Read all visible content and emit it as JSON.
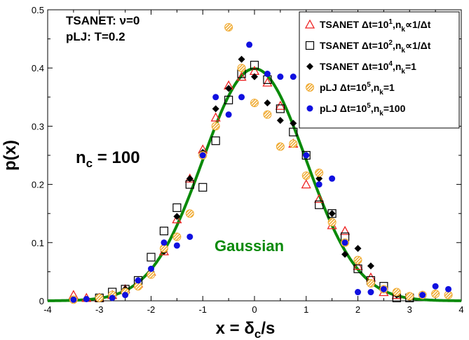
{
  "chart_data": {
    "type": "scatter",
    "xlim": [
      -4,
      4
    ],
    "ylim": [
      0,
      0.5
    ],
    "xticks": [
      "-4",
      "-3",
      "-2",
      "-1",
      "0",
      "1",
      "2",
      "3",
      "4"
    ],
    "yticks": [
      "0",
      "0.1",
      "0.2",
      "0.3",
      "0.4",
      "0.5"
    ],
    "xlabel": {
      "prefix": "x = δ",
      "sub": "c",
      "suffix": "/s"
    },
    "ylabel": "p(x)",
    "annotations": {
      "line1": "TSANET: ν=0",
      "line2": "pLJ: T=0.2",
      "nc_main": "n",
      "nc_sub": "c",
      "nc_rest": " = 100",
      "curve_label": "Gaussian"
    },
    "legend_position": "top-right",
    "colors": {
      "tri": "#ee2222",
      "square": "#000000",
      "diamond": "#000000",
      "hatched": "#f0aa30",
      "blue": "#1010e0",
      "gaussian": "#0a8a0a"
    },
    "legend": [
      {
        "marker": "triangle-open",
        "parts": [
          {
            "t": "TSANET  Δt=10"
          },
          {
            "t": "1",
            "sup": true
          },
          {
            "t": ",n"
          },
          {
            "t": "k",
            "sub": true
          },
          {
            "t": "∝1/Δt"
          }
        ]
      },
      {
        "marker": "square-open",
        "parts": [
          {
            "t": "TSANET  Δt=10"
          },
          {
            "t": "2",
            "sup": true
          },
          {
            "t": ",n"
          },
          {
            "t": "k",
            "sub": true
          },
          {
            "t": "∝1/Δt"
          }
        ]
      },
      {
        "marker": "diamond-filled",
        "parts": [
          {
            "t": "TSANET  Δt=10"
          },
          {
            "t": "4",
            "sup": true
          },
          {
            "t": ",n"
          },
          {
            "t": "k",
            "sub": true
          },
          {
            "t": "=1"
          }
        ]
      },
      {
        "marker": "circle-hatched",
        "parts": [
          {
            "t": "pLJ  Δt=10"
          },
          {
            "t": "5",
            "sup": true
          },
          {
            "t": ",n"
          },
          {
            "t": "k",
            "sub": true
          },
          {
            "t": "=1"
          }
        ]
      },
      {
        "marker": "circle-filled",
        "parts": [
          {
            "t": "pLJ  Δt=10"
          },
          {
            "t": "5",
            "sup": true
          },
          {
            "t": ",n"
          },
          {
            "t": "k",
            "sub": true
          },
          {
            "t": "=100"
          }
        ]
      }
    ],
    "gaussian": {
      "mean": 0,
      "sigma": 1
    },
    "series": [
      {
        "marker": "triangle-open",
        "points": [
          [
            -3.5,
            0.01
          ],
          [
            -3.25,
            0.005
          ],
          [
            -3.0,
            0.005
          ],
          [
            -2.75,
            0.01
          ],
          [
            -2.5,
            0.02
          ],
          [
            -2.25,
            0.03
          ],
          [
            -2.0,
            0.05
          ],
          [
            -1.75,
            0.085
          ],
          [
            -1.5,
            0.14
          ],
          [
            -1.25,
            0.21
          ],
          [
            -1.0,
            0.26
          ],
          [
            -0.75,
            0.315
          ],
          [
            -0.5,
            0.37
          ],
          [
            -0.25,
            0.385
          ],
          [
            0.0,
            0.395
          ],
          [
            0.25,
            0.375
          ],
          [
            0.5,
            0.335
          ],
          [
            0.75,
            0.27
          ],
          [
            1.0,
            0.2
          ],
          [
            1.25,
            0.175
          ],
          [
            1.5,
            0.13
          ],
          [
            1.75,
            0.12
          ],
          [
            2.0,
            0.06
          ],
          [
            2.25,
            0.04
          ],
          [
            2.5,
            0.015
          ],
          [
            2.75,
            0.01
          ]
        ]
      },
      {
        "marker": "square-open",
        "points": [
          [
            -3.0,
            0.005
          ],
          [
            -2.75,
            0.015
          ],
          [
            -2.5,
            0.02
          ],
          [
            -2.25,
            0.035
          ],
          [
            -2.0,
            0.075
          ],
          [
            -1.75,
            0.12
          ],
          [
            -1.5,
            0.16
          ],
          [
            -1.25,
            0.2
          ],
          [
            -1.0,
            0.195
          ],
          [
            -0.75,
            0.275
          ],
          [
            -0.5,
            0.345
          ],
          [
            -0.25,
            0.39
          ],
          [
            0.0,
            0.405
          ],
          [
            0.25,
            0.38
          ],
          [
            0.5,
            0.33
          ],
          [
            0.75,
            0.29
          ],
          [
            1.0,
            0.25
          ],
          [
            1.25,
            0.165
          ],
          [
            1.5,
            0.15
          ],
          [
            1.75,
            0.11
          ],
          [
            2.0,
            0.055
          ],
          [
            2.25,
            0.035
          ],
          [
            2.5,
            0.025
          ],
          [
            2.75,
            0.005
          ],
          [
            3.0,
            0.005
          ]
        ]
      },
      {
        "marker": "diamond-filled",
        "points": [
          [
            -3.0,
            0.005
          ],
          [
            -2.75,
            0.008
          ],
          [
            -2.5,
            0.02
          ],
          [
            -2.25,
            0.035
          ],
          [
            -2.0,
            0.05
          ],
          [
            -1.75,
            0.085
          ],
          [
            -1.5,
            0.145
          ],
          [
            -1.25,
            0.21
          ],
          [
            -1.0,
            0.255
          ],
          [
            -0.75,
            0.33
          ],
          [
            -0.5,
            0.365
          ],
          [
            -0.25,
            0.415
          ],
          [
            0.0,
            0.385
          ],
          [
            0.25,
            0.34
          ],
          [
            0.5,
            0.31
          ],
          [
            0.75,
            0.305
          ],
          [
            1.0,
            0.25
          ],
          [
            1.25,
            0.21
          ],
          [
            1.5,
            0.15
          ],
          [
            1.75,
            0.08
          ],
          [
            2.0,
            0.09
          ],
          [
            2.25,
            0.06
          ],
          [
            2.5,
            0.02
          ],
          [
            2.75,
            0.01
          ],
          [
            3.0,
            0.005
          ]
        ]
      },
      {
        "marker": "circle-hatched",
        "points": [
          [
            -3.5,
            0.002
          ],
          [
            -3.0,
            0.005
          ],
          [
            -2.75,
            0.01
          ],
          [
            -2.5,
            0.015
          ],
          [
            -2.25,
            0.025
          ],
          [
            -2.0,
            0.045
          ],
          [
            -1.75,
            0.09
          ],
          [
            -1.5,
            0.11
          ],
          [
            -1.25,
            0.15
          ],
          [
            -1.0,
            0.25
          ],
          [
            -0.75,
            0.3
          ],
          [
            -0.5,
            0.47
          ],
          [
            -0.25,
            0.4
          ],
          [
            0.0,
            0.34
          ],
          [
            0.25,
            0.32
          ],
          [
            0.5,
            0.265
          ],
          [
            0.75,
            0.27
          ],
          [
            1.0,
            0.215
          ],
          [
            1.25,
            0.22
          ],
          [
            1.5,
            0.135
          ],
          [
            1.75,
            0.1
          ],
          [
            2.0,
            0.07
          ],
          [
            2.25,
            0.03
          ],
          [
            2.5,
            0.02
          ],
          [
            2.75,
            0.015
          ],
          [
            3.0,
            0.008
          ],
          [
            3.25,
            0.01
          ],
          [
            3.5,
            0.012
          ],
          [
            3.75,
            0.01
          ]
        ]
      },
      {
        "marker": "circle-filled",
        "points": [
          [
            -3.5,
            0.002
          ],
          [
            -3.25,
            0.003
          ],
          [
            -2.75,
            0.005
          ],
          [
            -2.5,
            0.01
          ],
          [
            -2.25,
            0.035
          ],
          [
            -2.0,
            0.055
          ],
          [
            -1.75,
            0.1
          ],
          [
            -1.5,
            0.095
          ],
          [
            -1.25,
            0.11
          ],
          [
            -1.0,
            0.25
          ],
          [
            -0.75,
            0.35
          ],
          [
            -0.5,
            0.32
          ],
          [
            -0.25,
            0.35
          ],
          [
            -0.1,
            0.44
          ],
          [
            0.25,
            0.39
          ],
          [
            0.5,
            0.385
          ],
          [
            0.75,
            0.385
          ],
          [
            1.0,
            0.25
          ],
          [
            1.25,
            0.2
          ],
          [
            1.5,
            0.21
          ],
          [
            1.75,
            0.1
          ],
          [
            2.0,
            0.015
          ],
          [
            2.25,
            0.015
          ],
          [
            2.5,
            0.02
          ],
          [
            3.25,
            0.01
          ],
          [
            3.5,
            0.025
          ],
          [
            3.75,
            0.02
          ]
        ]
      }
    ]
  }
}
